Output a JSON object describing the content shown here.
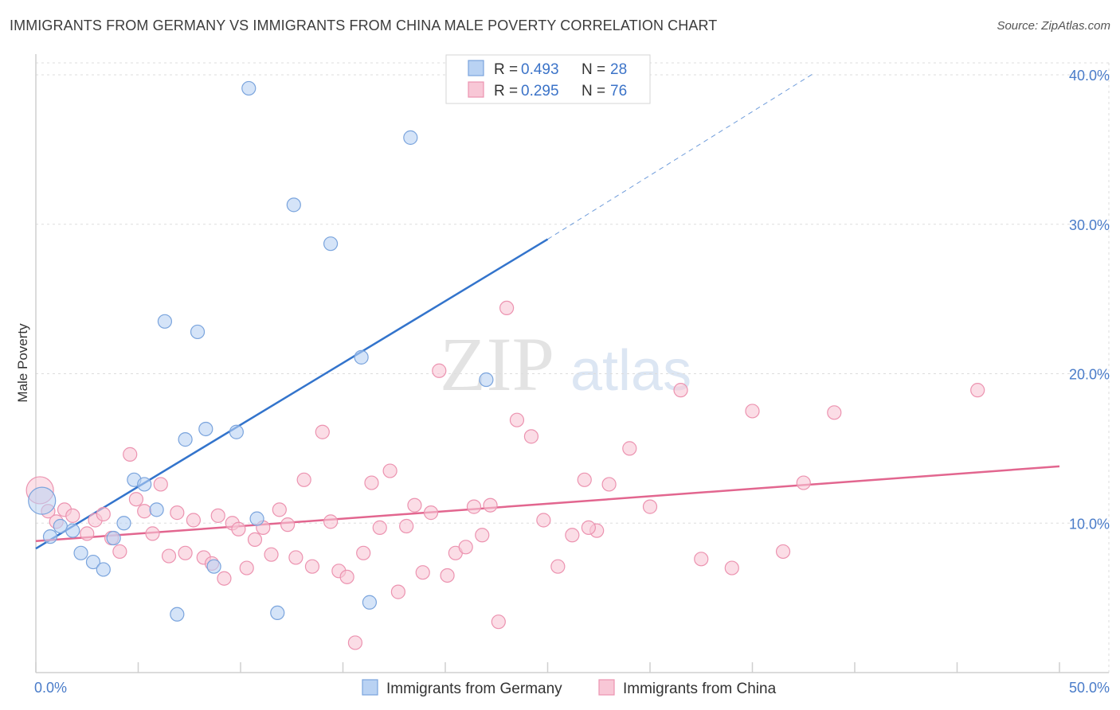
{
  "header": {
    "title": "IMMIGRANTS FROM GERMANY VS IMMIGRANTS FROM CHINA MALE POVERTY CORRELATION CHART",
    "source": "Source: ZipAtlas.com"
  },
  "watermark": {
    "zip": "ZIP",
    "atlas": "atlas"
  },
  "colors": {
    "germany_fill": "#b9d2f3",
    "germany_stroke": "#7aa4dd",
    "germany_line": "#3374cc",
    "china_fill": "#f8c7d6",
    "china_stroke": "#ec93b0",
    "china_line": "#e2668f",
    "grid": "#dddddd",
    "tick_label": "#4a7cc9"
  },
  "legend": {
    "rows": [
      {
        "r_label": "R = ",
        "r_value": "0.493",
        "n_label": "N = ",
        "n_value": "28"
      },
      {
        "r_label": "R = ",
        "r_value": "0.295",
        "n_label": "N = ",
        "n_value": "76"
      }
    ]
  },
  "chart_data": {
    "type": "scatter",
    "title": "IMMIGRANTS FROM GERMANY VS IMMIGRANTS FROM CHINA MALE POVERTY CORRELATION CHART",
    "xlabel": "",
    "ylabel": "Male Poverty",
    "xlim": [
      0,
      50
    ],
    "ylim": [
      0,
      40.8
    ],
    "x_tick_labels": [
      "0.0%",
      "50.0%"
    ],
    "y_ticks": [
      10,
      20,
      30,
      40
    ],
    "y_tick_labels": [
      "10.0%",
      "20.0%",
      "30.0%",
      "40.0%"
    ],
    "grid": true,
    "legend_position": "top-center",
    "series": [
      {
        "name": "Immigrants from Germany",
        "r": 0.493,
        "n": 28,
        "trend": {
          "x0": 0,
          "y0": 8.3,
          "x1": 25,
          "y1": 29.0,
          "dashed_to_x": 38,
          "dashed_to_y": 40.1
        },
        "points": [
          [
            0.3,
            11.5
          ],
          [
            0.7,
            9.1
          ],
          [
            1.2,
            9.8
          ],
          [
            1.8,
            9.5
          ],
          [
            2.2,
            8.0
          ],
          [
            2.8,
            7.4
          ],
          [
            3.3,
            6.9
          ],
          [
            3.8,
            9.0
          ],
          [
            4.3,
            10.0
          ],
          [
            4.8,
            12.9
          ],
          [
            5.3,
            12.6
          ],
          [
            5.9,
            10.9
          ],
          [
            6.3,
            23.5
          ],
          [
            6.9,
            3.9
          ],
          [
            7.3,
            15.6
          ],
          [
            7.9,
            22.8
          ],
          [
            8.3,
            16.3
          ],
          [
            8.7,
            7.1
          ],
          [
            9.8,
            16.1
          ],
          [
            10.4,
            39.1
          ],
          [
            10.8,
            10.3
          ],
          [
            11.8,
            4.0
          ],
          [
            12.6,
            31.3
          ],
          [
            14.4,
            28.7
          ],
          [
            15.9,
            21.1
          ],
          [
            16.3,
            4.7
          ],
          [
            18.3,
            35.8
          ],
          [
            22.0,
            19.6
          ]
        ]
      },
      {
        "name": "Immigrants from China",
        "r": 0.295,
        "n": 76,
        "trend": {
          "x0": 0,
          "y0": 8.8,
          "x1": 50,
          "y1": 13.8
        },
        "points": [
          [
            0.2,
            12.2
          ],
          [
            0.6,
            10.8
          ],
          [
            1.0,
            10.1
          ],
          [
            1.4,
            10.9
          ],
          [
            1.8,
            10.5
          ],
          [
            2.5,
            9.3
          ],
          [
            2.9,
            10.2
          ],
          [
            3.3,
            10.6
          ],
          [
            3.7,
            9.0
          ],
          [
            4.1,
            8.1
          ],
          [
            4.6,
            14.6
          ],
          [
            4.9,
            11.6
          ],
          [
            5.3,
            10.8
          ],
          [
            5.7,
            9.3
          ],
          [
            6.1,
            12.6
          ],
          [
            6.5,
            7.8
          ],
          [
            6.9,
            10.7
          ],
          [
            7.3,
            8.0
          ],
          [
            7.7,
            10.2
          ],
          [
            8.2,
            7.7
          ],
          [
            8.6,
            7.3
          ],
          [
            8.9,
            10.5
          ],
          [
            9.2,
            6.3
          ],
          [
            9.6,
            10.0
          ],
          [
            9.9,
            9.6
          ],
          [
            10.3,
            7.0
          ],
          [
            10.7,
            8.9
          ],
          [
            11.1,
            9.7
          ],
          [
            11.5,
            7.9
          ],
          [
            11.9,
            10.9
          ],
          [
            12.3,
            9.9
          ],
          [
            12.7,
            7.7
          ],
          [
            13.1,
            12.9
          ],
          [
            13.5,
            7.1
          ],
          [
            14.0,
            16.1
          ],
          [
            14.4,
            10.1
          ],
          [
            14.8,
            6.8
          ],
          [
            15.2,
            6.4
          ],
          [
            15.6,
            2.0
          ],
          [
            16.0,
            8.0
          ],
          [
            16.4,
            12.7
          ],
          [
            16.8,
            9.7
          ],
          [
            17.3,
            13.5
          ],
          [
            17.7,
            5.4
          ],
          [
            18.1,
            9.8
          ],
          [
            18.5,
            11.2
          ],
          [
            18.9,
            6.7
          ],
          [
            19.3,
            10.7
          ],
          [
            19.7,
            20.2
          ],
          [
            20.1,
            6.5
          ],
          [
            20.5,
            8.0
          ],
          [
            21.0,
            8.4
          ],
          [
            21.4,
            11.1
          ],
          [
            21.8,
            9.2
          ],
          [
            22.2,
            11.2
          ],
          [
            22.6,
            3.4
          ],
          [
            23.0,
            24.4
          ],
          [
            23.5,
            16.9
          ],
          [
            24.2,
            15.8
          ],
          [
            24.8,
            10.2
          ],
          [
            25.5,
            7.1
          ],
          [
            26.2,
            9.2
          ],
          [
            26.8,
            12.9
          ],
          [
            27.4,
            9.5
          ],
          [
            28.0,
            12.6
          ],
          [
            29.0,
            15.0
          ],
          [
            30.0,
            11.1
          ],
          [
            31.5,
            18.9
          ],
          [
            32.5,
            7.6
          ],
          [
            34.0,
            7.0
          ],
          [
            35.0,
            17.5
          ],
          [
            36.5,
            8.1
          ],
          [
            37.5,
            12.7
          ],
          [
            39.0,
            17.4
          ],
          [
            46.0,
            18.9
          ],
          [
            27.0,
            9.7
          ]
        ]
      }
    ]
  }
}
